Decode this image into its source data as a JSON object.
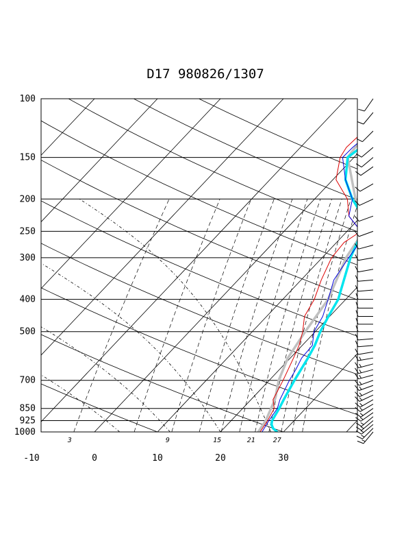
{
  "chart_data": {
    "type": "skew-t",
    "title": "D17 980826/1307",
    "pressure_levels": [
      100,
      150,
      200,
      250,
      300,
      400,
      500,
      700,
      850,
      925,
      1000
    ],
    "temperature_ticks": [
      -10,
      0,
      10,
      20,
      30
    ],
    "xlim": [
      -10,
      40
    ],
    "ylim": [
      1000,
      100
    ],
    "mixing_ratio_labels": [
      "3",
      "9",
      "15",
      "21",
      "27"
    ],
    "grid": true,
    "colors": {
      "temperature": "#00e5ee",
      "dewpoint": "#0000dd",
      "dewpoint_2": "#dd0000",
      "parcel": "#c0c0c0",
      "grid": "#000000"
    },
    "series": [
      {
        "key": "temperature",
        "points": [
          [
            1000,
            29.0
          ],
          [
            975,
            27.8
          ],
          [
            950,
            27.0
          ],
          [
            925,
            26.5
          ],
          [
            850,
            25.8
          ],
          [
            800,
            25.2
          ],
          [
            700,
            24.0
          ],
          [
            600,
            22.8
          ],
          [
            550,
            22.0
          ],
          [
            500,
            20.8
          ],
          [
            450,
            19.8
          ],
          [
            400,
            18.8
          ],
          [
            350,
            16.8
          ],
          [
            300,
            14.5
          ],
          [
            275,
            13.5
          ],
          [
            250,
            12.5
          ],
          [
            225,
            10.2
          ],
          [
            200,
            6.0
          ],
          [
            175,
            2.0
          ],
          [
            150,
            -1.0
          ],
          [
            140,
            -0.4
          ],
          [
            125,
            0.8
          ],
          [
            110,
            1.7
          ],
          [
            100,
            2.2
          ]
        ]
      },
      {
        "key": "dewpoint",
        "points": [
          [
            1000,
            26.6
          ],
          [
            925,
            26.0
          ],
          [
            850,
            25.5
          ],
          [
            800,
            24.6
          ],
          [
            700,
            23.2
          ],
          [
            650,
            22.6
          ],
          [
            600,
            21.8
          ],
          [
            550,
            21.6
          ],
          [
            500,
            19.8
          ],
          [
            450,
            18.9
          ],
          [
            400,
            17.2
          ],
          [
            350,
            15.2
          ],
          [
            300,
            14.2
          ],
          [
            260,
            13.5
          ],
          [
            250,
            12.2
          ],
          [
            225,
            8.0
          ],
          [
            200,
            6.0
          ],
          [
            175,
            2.0
          ],
          [
            150,
            -1.8
          ],
          [
            140,
            -1.7
          ],
          [
            125,
            -1.1
          ],
          [
            110,
            -0.5
          ],
          [
            100,
            0.2
          ]
        ]
      },
      {
        "key": "dewpoint_2",
        "points": [
          [
            1000,
            26.3
          ],
          [
            925,
            25.8
          ],
          [
            850,
            25.0
          ],
          [
            800,
            23.5
          ],
          [
            700,
            22.2
          ],
          [
            600,
            20.5
          ],
          [
            550,
            19.5
          ],
          [
            500,
            18.0
          ],
          [
            450,
            16.0
          ],
          [
            400,
            15.0
          ],
          [
            350,
            13.2
          ],
          [
            300,
            11.5
          ],
          [
            270,
            11.2
          ],
          [
            250,
            12.2
          ],
          [
            225,
            8.0
          ],
          [
            200,
            5.2
          ],
          [
            175,
            0.5
          ],
          [
            150,
            -2.2
          ],
          [
            140,
            -2.7
          ],
          [
            125,
            -2.4
          ],
          [
            110,
            -1.9
          ],
          [
            100,
            -1.5
          ]
        ]
      },
      {
        "key": "parcel",
        "points": [
          [
            1000,
            26.0
          ],
          [
            925,
            25.5
          ],
          [
            850,
            24.5
          ],
          [
            800,
            23.8
          ],
          [
            700,
            21.5
          ],
          [
            600,
            19.6
          ],
          [
            500,
            18.4
          ],
          [
            400,
            17.2
          ],
          [
            300,
            13.8
          ],
          [
            250,
            12.6
          ],
          [
            200,
            6.5
          ],
          [
            150,
            -1.0
          ],
          [
            125,
            -1.8
          ],
          [
            100,
            -2.8
          ]
        ]
      }
    ],
    "wind_barbs": {
      "speed_unit": "knots",
      "levels": [
        [
          1000,
          220,
          15
        ],
        [
          975,
          225,
          15
        ],
        [
          950,
          230,
          15
        ],
        [
          925,
          230,
          15
        ],
        [
          900,
          230,
          15
        ],
        [
          875,
          235,
          15
        ],
        [
          850,
          235,
          15
        ],
        [
          825,
          240,
          15
        ],
        [
          800,
          240,
          15
        ],
        [
          775,
          245,
          15
        ],
        [
          750,
          245,
          15
        ],
        [
          725,
          250,
          15
        ],
        [
          700,
          250,
          15
        ],
        [
          675,
          255,
          15
        ],
        [
          650,
          255,
          15
        ],
        [
          625,
          255,
          15
        ],
        [
          600,
          260,
          15
        ],
        [
          575,
          260,
          10
        ],
        [
          550,
          265,
          10
        ],
        [
          525,
          265,
          10
        ],
        [
          500,
          270,
          10
        ],
        [
          475,
          270,
          10
        ],
        [
          450,
          270,
          10
        ],
        [
          425,
          270,
          10
        ],
        [
          400,
          270,
          10
        ],
        [
          375,
          265,
          10
        ],
        [
          350,
          265,
          10
        ],
        [
          325,
          260,
          10
        ],
        [
          300,
          260,
          10
        ],
        [
          275,
          255,
          10
        ],
        [
          250,
          250,
          10
        ],
        [
          225,
          250,
          10
        ],
        [
          200,
          245,
          10
        ],
        [
          180,
          240,
          10
        ],
        [
          160,
          235,
          10
        ],
        [
          150,
          230,
          10
        ],
        [
          140,
          230,
          10
        ],
        [
          125,
          225,
          10
        ],
        [
          110,
          220,
          10
        ],
        [
          100,
          215,
          10
        ]
      ]
    }
  }
}
